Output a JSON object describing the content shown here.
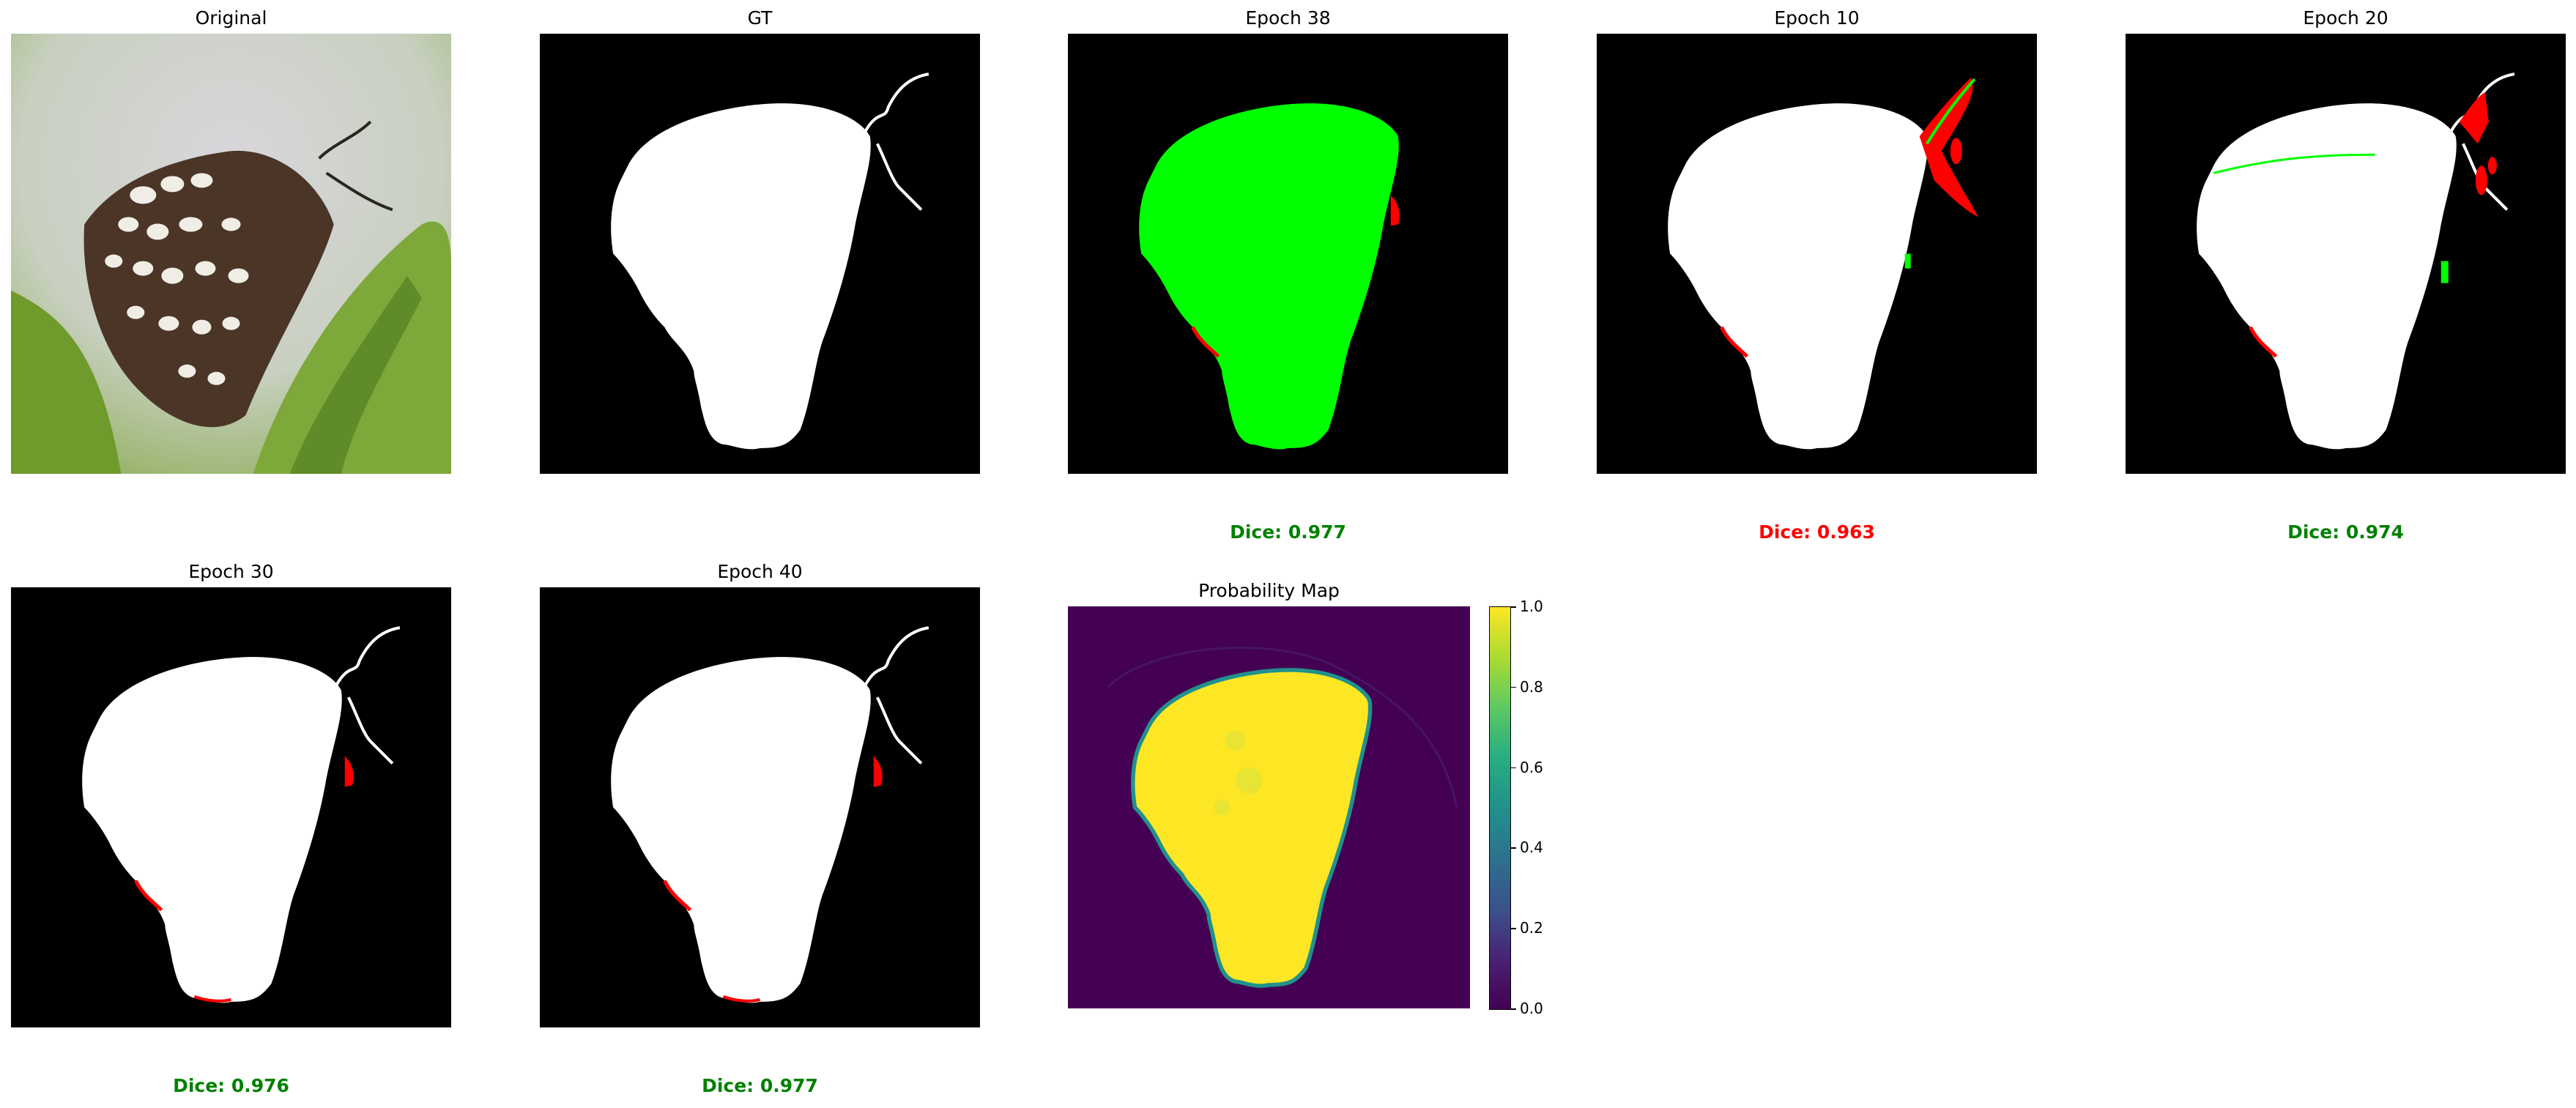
{
  "panels": {
    "original": {
      "title": "Original"
    },
    "gt": {
      "title": "GT"
    },
    "epoch38": {
      "title": "Epoch 38",
      "dice": "Dice: 0.977",
      "dice_color": "#008000"
    },
    "epoch10": {
      "title": "Epoch 10",
      "dice": "Dice: 0.963",
      "dice_color": "#ff0000"
    },
    "epoch20": {
      "title": "Epoch 20",
      "dice": "Dice: 0.974",
      "dice_color": "#008000"
    },
    "epoch30": {
      "title": "Epoch 30",
      "dice": "Dice: 0.976",
      "dice_color": "#008000"
    },
    "epoch40": {
      "title": "Epoch 40",
      "dice": "Dice: 0.977",
      "dice_color": "#008000"
    },
    "probmap": {
      "title": "Probability Map"
    }
  },
  "colorbar": {
    "ticks": [
      "0.0",
      "0.2",
      "0.4",
      "0.6",
      "0.8",
      "1.0"
    ],
    "colormap": "viridis"
  },
  "colors": {
    "mask": "#ffffff",
    "background": "#000000",
    "true_positive_overlay": "#00ff00",
    "false_negative": "#ff0000",
    "false_positive": "#00ff00",
    "dice_good": "#008000",
    "dice_bad": "#ff0000"
  }
}
